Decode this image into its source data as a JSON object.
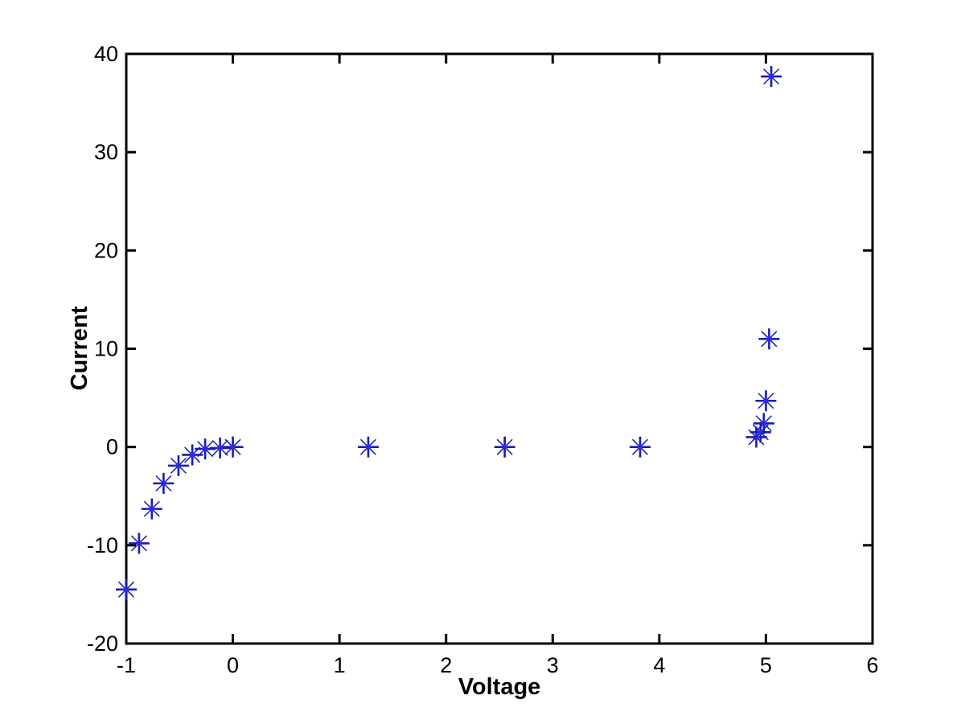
{
  "figure": {
    "background": "#ffffff",
    "axes_color": "#000000",
    "marker_color": "#1a1ab8",
    "marker_center_color": "#2b2be0"
  },
  "chart_data": {
    "type": "scatter",
    "title": "",
    "xlabel": "Voltage",
    "ylabel": "Current",
    "xlim": [
      -1,
      6
    ],
    "ylim": [
      -20,
      40
    ],
    "xticks": [
      -1,
      0,
      1,
      2,
      3,
      4,
      5,
      6
    ],
    "yticks": [
      -20,
      -10,
      0,
      10,
      20,
      30,
      40
    ],
    "grid": false,
    "legend": null,
    "marker": "asterisk",
    "points": [
      {
        "x": -1.0,
        "y": -14.5
      },
      {
        "x": -0.88,
        "y": -9.8
      },
      {
        "x": -0.76,
        "y": -6.3
      },
      {
        "x": -0.65,
        "y": -3.7
      },
      {
        "x": -0.51,
        "y": -1.9
      },
      {
        "x": -0.38,
        "y": -0.8
      },
      {
        "x": -0.26,
        "y": -0.2
      },
      {
        "x": -0.12,
        "y": -0.1
      },
      {
        "x": 0.0,
        "y": 0.0
      },
      {
        "x": 1.27,
        "y": 0.0
      },
      {
        "x": 2.55,
        "y": 0.0
      },
      {
        "x": 3.82,
        "y": 0.0
      },
      {
        "x": 4.91,
        "y": 1.0
      },
      {
        "x": 4.95,
        "y": 1.5
      },
      {
        "x": 4.98,
        "y": 2.4
      },
      {
        "x": 5.0,
        "y": 4.7
      },
      {
        "x": 5.03,
        "y": 11.0
      },
      {
        "x": 5.05,
        "y": 37.7
      }
    ]
  }
}
